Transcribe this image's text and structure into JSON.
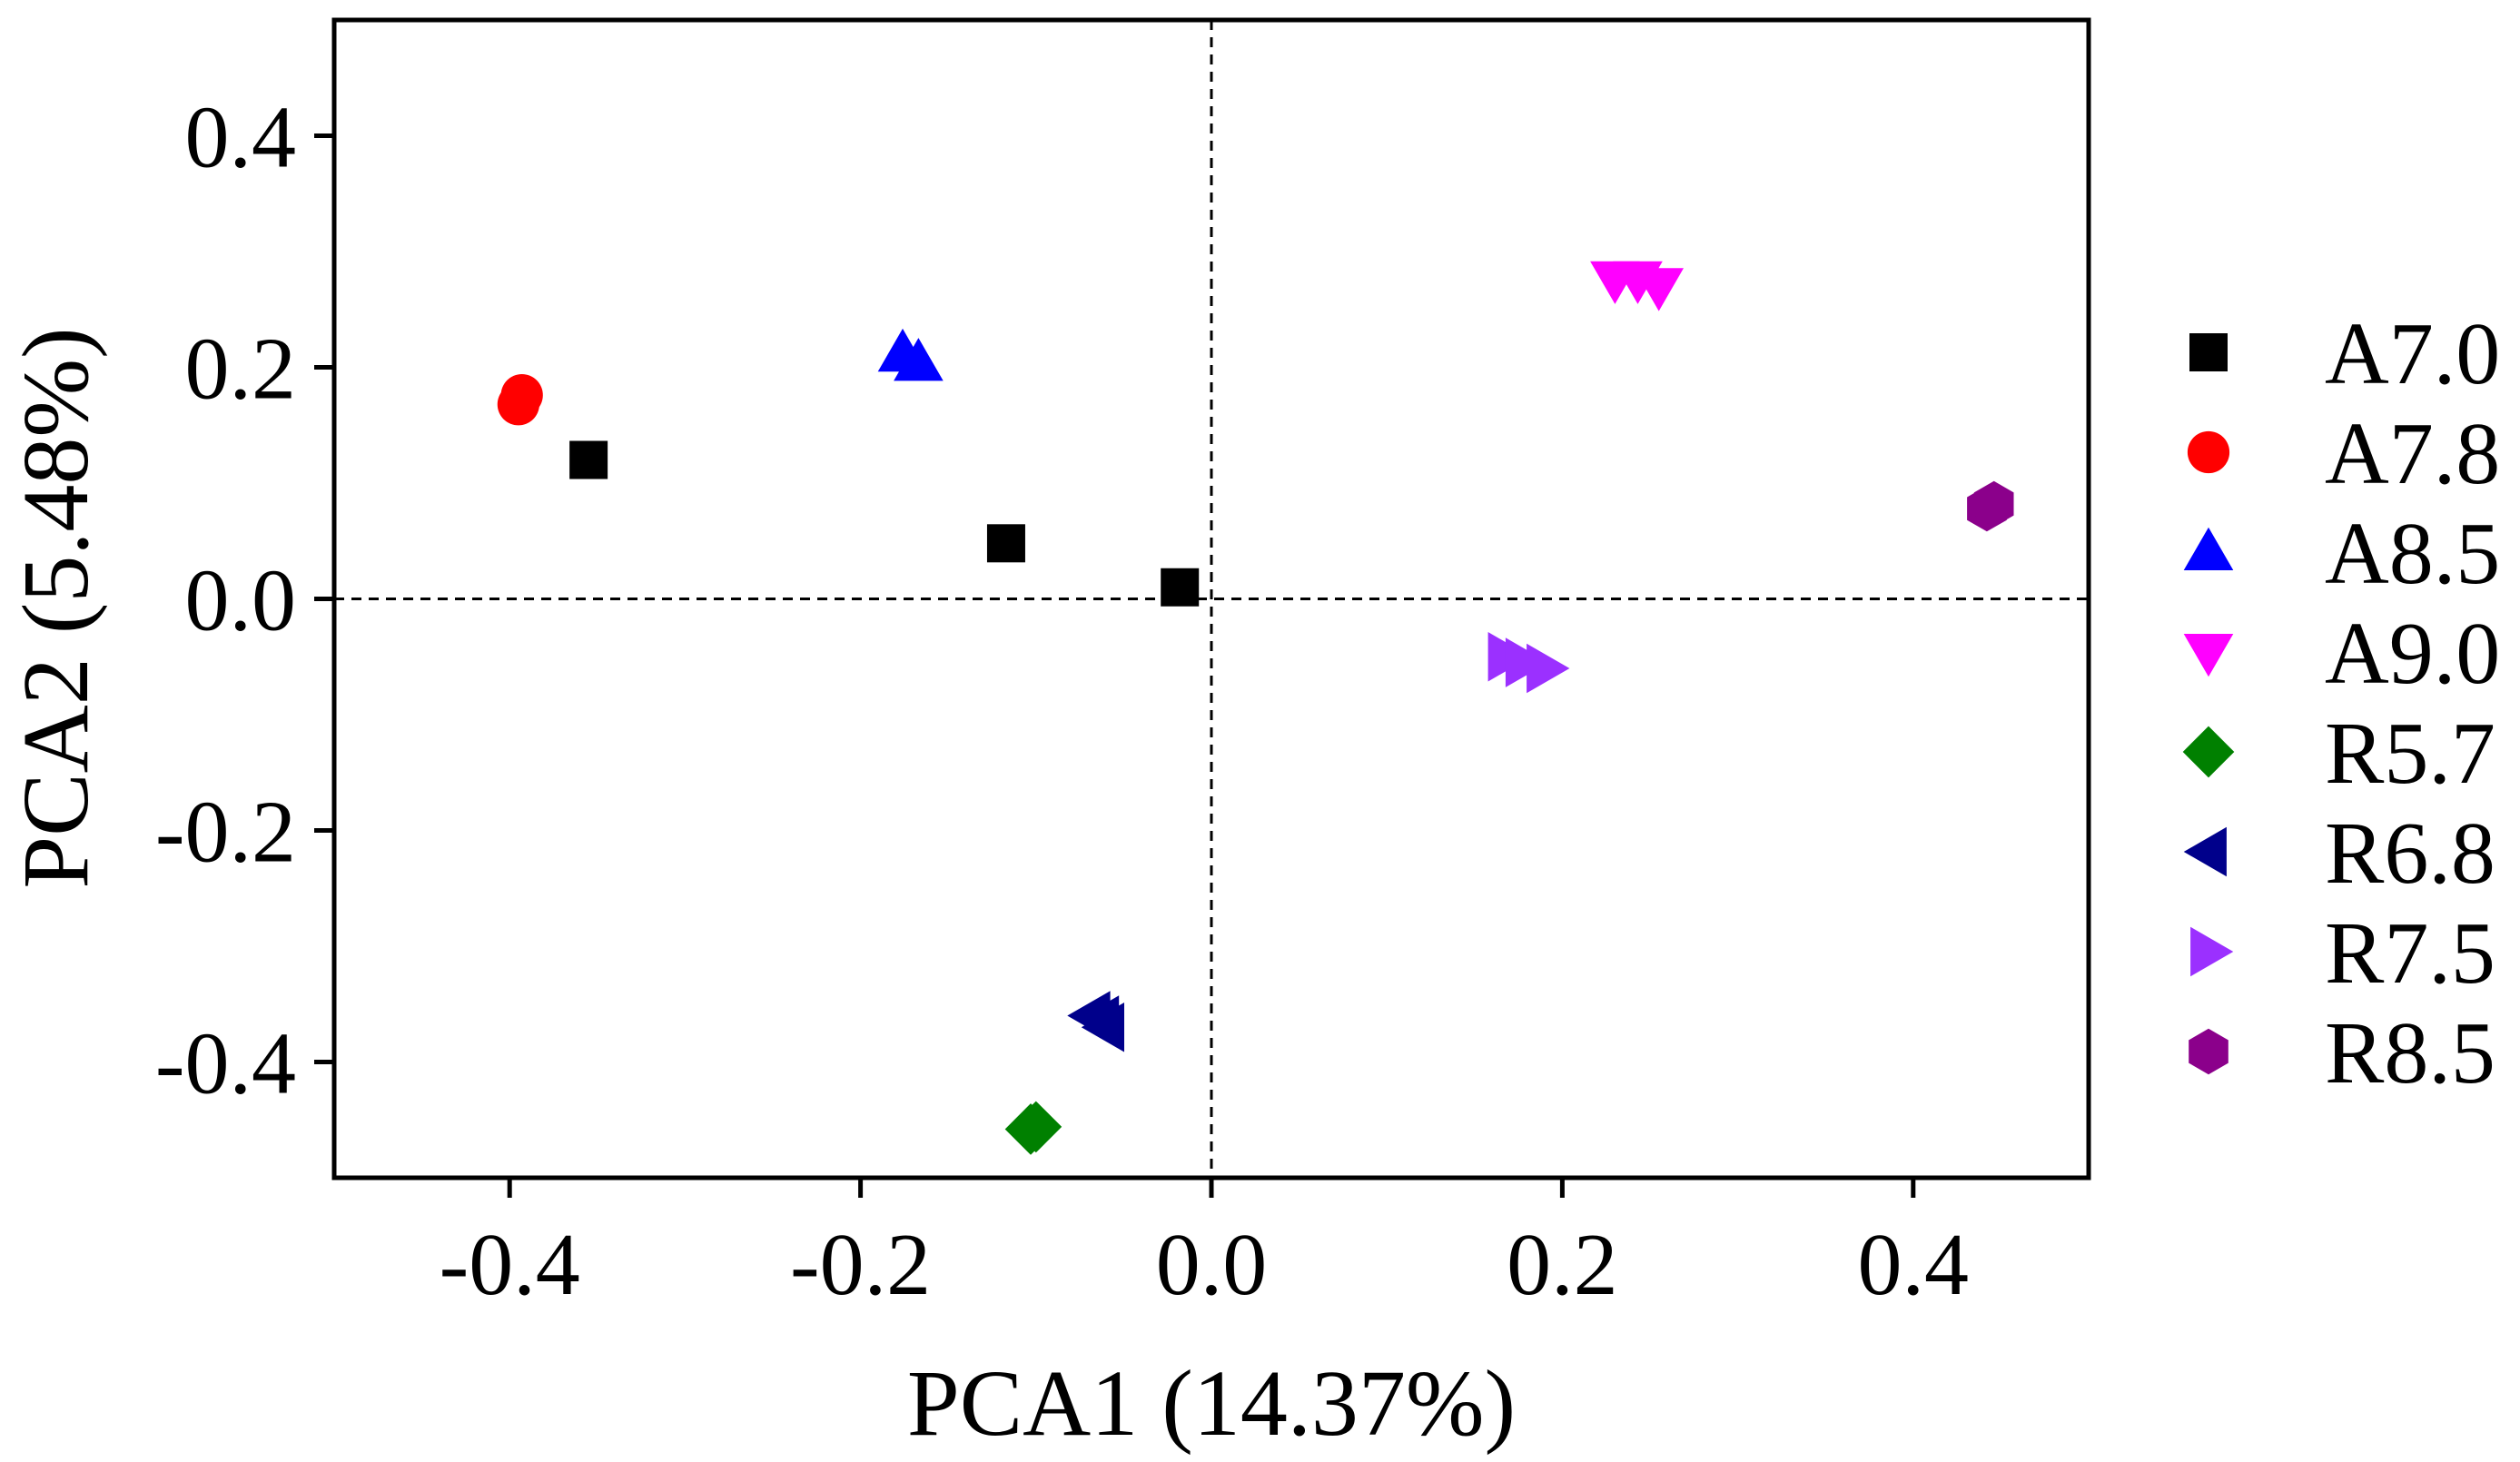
{
  "chart_data": {
    "type": "scatter",
    "title": "",
    "xlabel": "PCA1 (14.37%)",
    "ylabel": "PCA2 (5.48%)",
    "xlim": [
      -0.5,
      0.5
    ],
    "ylim": [
      -0.5,
      0.5
    ],
    "x_ticks": [
      -0.4,
      -0.2,
      0.0,
      0.2,
      0.4
    ],
    "y_ticks": [
      -0.4,
      -0.2,
      0.0,
      0.2,
      0.4
    ],
    "x_tick_labels": [
      "-0.4",
      "-0.2",
      "0.0",
      "0.2",
      "0.4"
    ],
    "y_tick_labels": [
      "-0.4",
      "-0.2",
      "0.0",
      "0.2",
      "0.4"
    ],
    "reference_lines": {
      "x": 0.0,
      "y": 0.0,
      "style": "dashed"
    },
    "grid": false,
    "legend_position": "right",
    "series": [
      {
        "name": "A7.0",
        "marker": "square",
        "color": "#000000",
        "points": [
          [
            -0.355,
            0.12
          ],
          [
            -0.117,
            0.048
          ],
          [
            -0.018,
            0.01
          ]
        ]
      },
      {
        "name": "A7.8",
        "marker": "circle",
        "color": "#ff0000",
        "points": [
          [
            -0.395,
            0.168
          ],
          [
            -0.393,
            0.176
          ]
        ]
      },
      {
        "name": "A8.5",
        "marker": "triangle-up",
        "color": "#0000ff",
        "points": [
          [
            -0.176,
            0.212
          ],
          [
            -0.167,
            0.204
          ]
        ]
      },
      {
        "name": "A9.0",
        "marker": "triangle-down",
        "color": "#ff00ff",
        "points": [
          [
            0.23,
            0.276
          ],
          [
            0.255,
            0.27
          ],
          [
            0.243,
            0.276
          ]
        ]
      },
      {
        "name": "R5.7",
        "marker": "diamond",
        "color": "#008000",
        "points": [
          [
            -0.103,
            -0.458
          ],
          [
            -0.1,
            -0.456
          ]
        ]
      },
      {
        "name": "R6.8",
        "marker": "triangle-left",
        "color": "#00008b",
        "points": [
          [
            -0.068,
            -0.36
          ],
          [
            -0.06,
            -0.37
          ],
          [
            -0.063,
            -0.364
          ]
        ]
      },
      {
        "name": "R7.5",
        "marker": "triangle-right",
        "color": "#9b30ff",
        "points": [
          [
            0.168,
            -0.05
          ],
          [
            0.178,
            -0.055
          ],
          [
            0.19,
            -0.06
          ]
        ]
      },
      {
        "name": "R8.5",
        "marker": "hexagon",
        "color": "#8b008b",
        "points": [
          [
            0.442,
            0.078
          ],
          [
            0.446,
            0.082
          ]
        ]
      }
    ]
  }
}
